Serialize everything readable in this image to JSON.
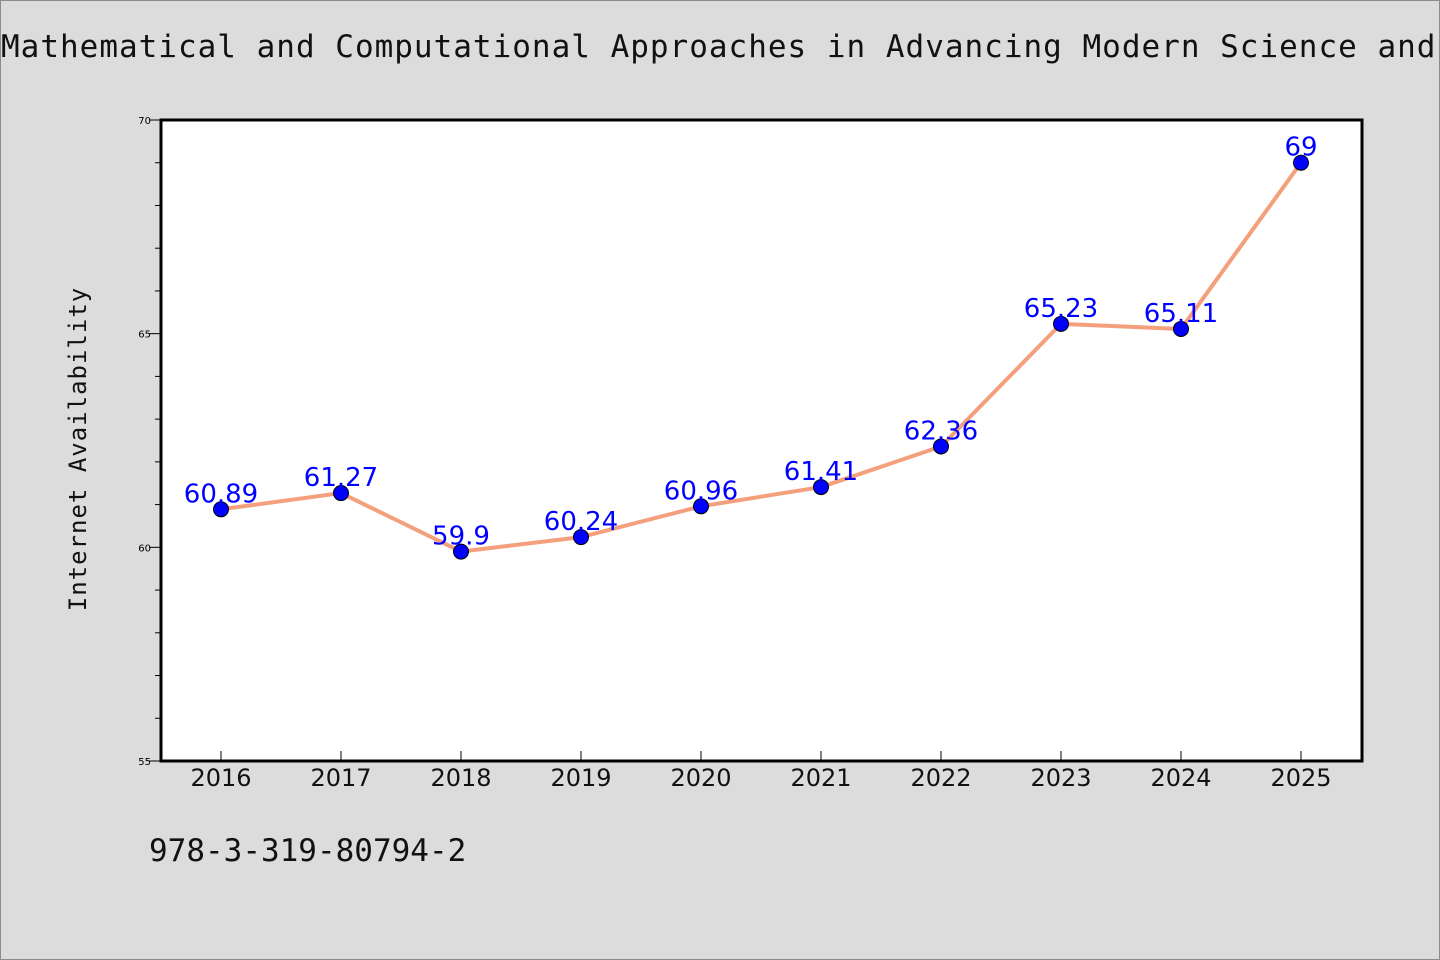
{
  "chart_data": {
    "type": "line",
    "title": "Mathematical and Computational Approaches in Advancing Modern Science and Engine",
    "xlabel": "",
    "ylabel": "Internet Availability",
    "categories": [
      "2016",
      "2017",
      "2018",
      "2019",
      "2020",
      "2021",
      "2022",
      "2023",
      "2024",
      "2025"
    ],
    "series": [
      {
        "values": [
          60.89,
          61.27,
          59.9,
          60.24,
          60.96,
          61.41,
          62.36,
          65.23,
          65.11,
          69
        ],
        "labels": [
          "60.89",
          "61.27",
          "59.9",
          "60.24",
          "60.96",
          "61.41",
          "62.36",
          "65.23",
          "65.11",
          "69"
        ]
      }
    ],
    "ylim": [
      55,
      70
    ],
    "yticks": [
      "55",
      "60",
      "65",
      "70"
    ],
    "grid": false,
    "colors": {
      "line": "#f4a07c",
      "marker": "#0000ff",
      "label": "#0000ff",
      "background": "#dcdcdc",
      "plot_bg": "#ffffff"
    }
  },
  "footer": {
    "isbn": "978-3-319-80794-2"
  }
}
